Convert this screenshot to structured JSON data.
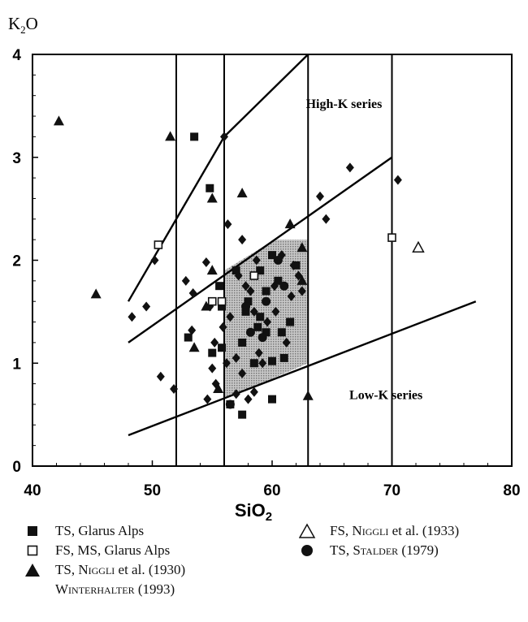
{
  "chart_data": {
    "type": "scatter",
    "title": "",
    "ylabel_main": "K",
    "ylabel_sub": "2",
    "ylabel_tail": "O",
    "xlabel_main": "SiO",
    "xlabel_sub": "2",
    "xlim": [
      40,
      80
    ],
    "ylim": [
      0,
      4
    ],
    "xticks": [
      "40",
      "50",
      "60",
      "70",
      "80"
    ],
    "yticks": [
      "0",
      "1",
      "2",
      "3",
      "4"
    ],
    "vertical_lines_x": [
      52,
      56,
      63,
      70
    ],
    "boundary_lines": [
      {
        "name": "",
        "points": [
          [
            48,
            1.6
          ],
          [
            52.5,
            2.5
          ],
          [
            56,
            3.2
          ],
          [
            63,
            4.0
          ]
        ]
      },
      {
        "name": "",
        "points": [
          [
            48,
            1.2
          ],
          [
            70,
            3.0
          ]
        ]
      },
      {
        "name": "",
        "points": [
          [
            48,
            0.3
          ],
          [
            77,
            1.6
          ]
        ]
      }
    ],
    "shaded_field": [
      [
        56,
        0.65
      ],
      [
        56,
        1.9
      ],
      [
        60.2,
        2.2
      ],
      [
        63,
        2.2
      ],
      [
        63,
        1.0
      ]
    ],
    "annotations": [
      {
        "text": "High-K series",
        "x": 66,
        "y": 3.48
      },
      {
        "text": "Low-K series",
        "x": 69.5,
        "y": 0.65
      }
    ],
    "series": [
      {
        "name": "TS, Glarus Alps",
        "marker": "filled-square",
        "points": [
          [
            53.5,
            3.2
          ],
          [
            54.8,
            2.7
          ],
          [
            57,
            1.9
          ],
          [
            55.6,
            1.75
          ],
          [
            55.8,
            1.55
          ],
          [
            58.8,
            1.35
          ],
          [
            59,
            1.45
          ],
          [
            57.8,
            1.5
          ],
          [
            57.5,
            1.2
          ],
          [
            59.5,
            1.3
          ],
          [
            60.8,
            1.3
          ],
          [
            61.5,
            1.4
          ],
          [
            62,
            1.95
          ],
          [
            60,
            2.05
          ],
          [
            59,
            1.9
          ],
          [
            59.5,
            1.7
          ],
          [
            60,
            1.02
          ],
          [
            58.5,
            1.0
          ],
          [
            55.8,
            1.15
          ],
          [
            55,
            1.1
          ],
          [
            53,
            1.25
          ],
          [
            56.5,
            0.6
          ],
          [
            57.5,
            0.5
          ],
          [
            60,
            0.65
          ],
          [
            58,
            1.6
          ],
          [
            60.5,
            1.8
          ],
          [
            61,
            1.05
          ]
        ]
      },
      {
        "name": "FS, MS, Glarus Alps",
        "marker": "open-square",
        "points": [
          [
            50.5,
            2.15
          ],
          [
            55,
            1.6
          ],
          [
            55.8,
            1.6
          ],
          [
            58.5,
            1.85
          ],
          [
            70,
            2.22
          ]
        ]
      }
    ],
    "series_triangle": [
      {
        "name": "TS,",
        "name_sc": "Niggli",
        "name_tail": " et al. (1930)",
        "name_line2": "Winterhalter (1993)",
        "marker": "filled-triangle",
        "points": [
          [
            42.2,
            3.35
          ],
          [
            51.5,
            3.2
          ],
          [
            55,
            2.6
          ],
          [
            57.5,
            2.65
          ],
          [
            61.5,
            2.35
          ],
          [
            62.5,
            2.12
          ],
          [
            62.5,
            1.8
          ],
          [
            55,
            1.9
          ],
          [
            54.5,
            1.55
          ],
          [
            53.5,
            1.15
          ],
          [
            63,
            0.68
          ],
          [
            45.3,
            1.67
          ],
          [
            55.5,
            0.75
          ]
        ]
      },
      {
        "name": "FS,",
        "name_sc": "Niggli",
        "name_tail": " et al. (1933)",
        "marker": "open-triangle",
        "points": [
          [
            72.2,
            2.12
          ]
        ]
      }
    ],
    "series_circle": [
      {
        "name": "TS,",
        "name_sc": "Stalder",
        "name_tail": " (1979)",
        "marker": "filled-circle",
        "points": [
          [
            56.5,
            0.6
          ],
          [
            59.5,
            1.6
          ],
          [
            60.5,
            2.0
          ],
          [
            58.2,
            1.3
          ],
          [
            57.8,
            1.55
          ],
          [
            61,
            1.75
          ],
          [
            59.2,
            1.25
          ]
        ]
      }
    ],
    "diamonds": {
      "name": "",
      "marker": "filled-diamond",
      "points": [
        [
          48.3,
          1.45
        ],
        [
          49.5,
          1.55
        ],
        [
          50.2,
          2.0
        ],
        [
          50.7,
          0.87
        ],
        [
          51.8,
          0.75
        ],
        [
          52.8,
          1.8
        ],
        [
          53.4,
          1.68
        ],
        [
          53.3,
          1.32
        ],
        [
          54.5,
          1.98
        ],
        [
          54.8,
          1.55
        ],
        [
          55.2,
          1.2
        ],
        [
          55,
          0.95
        ],
        [
          55.3,
          0.8
        ],
        [
          54.6,
          0.65
        ],
        [
          56,
          3.2
        ],
        [
          56.3,
          2.35
        ],
        [
          57.5,
          2.2
        ],
        [
          57.2,
          1.85
        ],
        [
          57.8,
          1.75
        ],
        [
          58.2,
          1.7
        ],
        [
          58.5,
          1.5
        ],
        [
          58.9,
          1.1
        ],
        [
          59.6,
          1.4
        ],
        [
          60.2,
          1.75
        ],
        [
          60.8,
          2.05
        ],
        [
          61.2,
          1.2
        ],
        [
          61.6,
          1.65
        ],
        [
          62.2,
          1.85
        ],
        [
          64,
          2.62
        ],
        [
          64.5,
          2.4
        ],
        [
          66.5,
          2.9
        ],
        [
          70.5,
          2.78
        ],
        [
          57.5,
          0.9
        ],
        [
          58,
          0.65
        ],
        [
          58.5,
          0.72
        ],
        [
          59.2,
          1.0
        ],
        [
          57,
          0.7
        ],
        [
          56.2,
          1.0
        ],
        [
          57,
          1.05
        ],
        [
          55.9,
          1.35
        ],
        [
          56.5,
          1.45
        ],
        [
          58.7,
          2.0
        ],
        [
          60.3,
          1.5
        ],
        [
          61.8,
          1.95
        ],
        [
          62.5,
          1.7
        ]
      ]
    },
    "legend_position": "bottom",
    "grid": false
  }
}
